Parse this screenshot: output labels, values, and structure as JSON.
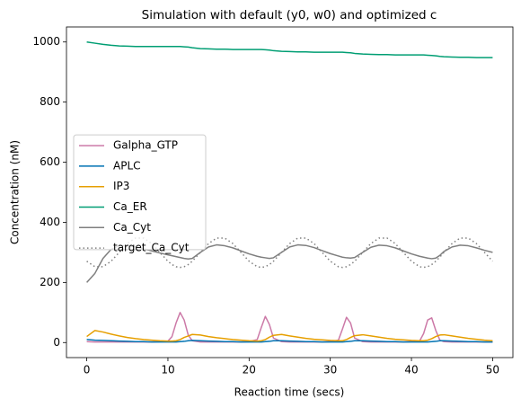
{
  "chart_data": {
    "type": "line",
    "title": "Simulation with default (y0, w0) and optimized c",
    "x_label": "Reaction time (secs)",
    "y_label": "Concentration (nM)",
    "xlim": [
      -2.5,
      52.5
    ],
    "ylim": [
      -50,
      1050
    ],
    "xticks": [
      0,
      10,
      20,
      30,
      40,
      50
    ],
    "yticks": [
      0,
      200,
      400,
      600,
      800,
      1000
    ],
    "legend_loc": "center left",
    "x": [
      0,
      1,
      2,
      3,
      4,
      5,
      6,
      7,
      8,
      9,
      10,
      10.5,
      11,
      11.5,
      12,
      12.5,
      13,
      14,
      15,
      16,
      17,
      18,
      19,
      20,
      21,
      21.5,
      22,
      22.5,
      23,
      24,
      25,
      26,
      27,
      28,
      29,
      30,
      31,
      31.5,
      32,
      32.5,
      33,
      34,
      35,
      36,
      37,
      38,
      39,
      40,
      41,
      41.5,
      42,
      42.5,
      43,
      43.5,
      44,
      45,
      46,
      47,
      48,
      49,
      50
    ],
    "series": [
      {
        "name": "Galpha_GTP",
        "color": "#cc79a7",
        "linestyle": "solid",
        "values": [
          3,
          2,
          2,
          2,
          2,
          2,
          2,
          2,
          2,
          3,
          5,
          20,
          65,
          100,
          75,
          25,
          6,
          2,
          2,
          2,
          2,
          2,
          2,
          3,
          10,
          50,
          87,
          60,
          15,
          3,
          2,
          2,
          2,
          2,
          2,
          3,
          8,
          45,
          84,
          65,
          15,
          3,
          2,
          2,
          2,
          2,
          2,
          3,
          5,
          30,
          75,
          82,
          40,
          8,
          3,
          2,
          2,
          2,
          2,
          2,
          2
        ]
      },
      {
        "name": "APLC",
        "color": "#0072b2",
        "linestyle": "solid",
        "values": [
          10,
          8,
          7,
          6,
          5,
          4,
          3,
          3,
          2,
          2,
          2,
          2,
          2,
          3,
          4,
          6,
          7,
          6,
          5,
          4,
          3,
          3,
          2,
          2,
          2,
          2,
          3,
          4,
          6,
          6,
          5,
          4,
          3,
          3,
          2,
          2,
          2,
          2,
          3,
          4,
          6,
          6,
          5,
          4,
          3,
          3,
          2,
          2,
          2,
          2,
          2,
          3,
          4,
          6,
          6,
          5,
          4,
          3,
          3,
          2,
          2
        ]
      },
      {
        "name": "IP3",
        "color": "#e69f00",
        "linestyle": "solid",
        "values": [
          20,
          40,
          35,
          28,
          22,
          17,
          13,
          10,
          8,
          6,
          5,
          5,
          6,
          10,
          17,
          22,
          27,
          25,
          20,
          16,
          13,
          10,
          8,
          6,
          5,
          6,
          10,
          18,
          24,
          27,
          22,
          18,
          14,
          11,
          9,
          7,
          6,
          6,
          10,
          17,
          23,
          26,
          22,
          18,
          14,
          11,
          9,
          7,
          6,
          6,
          8,
          13,
          20,
          25,
          26,
          22,
          18,
          14,
          11,
          8,
          6
        ]
      },
      {
        "name": "Ca_ER",
        "color": "#009e73",
        "linestyle": "solid",
        "values": [
          1000,
          996,
          992,
          989,
          987,
          986,
          985,
          985,
          985,
          985,
          985,
          985,
          985,
          985,
          984,
          983,
          981,
          978,
          977,
          976,
          976,
          975,
          975,
          975,
          975,
          975,
          974,
          973,
          971,
          969,
          968,
          967,
          967,
          966,
          966,
          966,
          966,
          966,
          965,
          964,
          962,
          960,
          959,
          958,
          958,
          957,
          957,
          957,
          957,
          957,
          956,
          955,
          954,
          952,
          951,
          950,
          949,
          949,
          948,
          948,
          948
        ]
      },
      {
        "name": "Ca_Cyt",
        "color": "#7f7f7f",
        "linestyle": "solid",
        "values": [
          200,
          230,
          280,
          310,
          322,
          322,
          318,
          312,
          305,
          298,
          292,
          289,
          286,
          283,
          280,
          278,
          280,
          300,
          318,
          325,
          322,
          315,
          305,
          295,
          287,
          284,
          282,
          280,
          282,
          300,
          318,
          325,
          323,
          316,
          306,
          296,
          288,
          284,
          282,
          281,
          283,
          300,
          317,
          324,
          322,
          315,
          305,
          295,
          287,
          284,
          281,
          279,
          281,
          290,
          303,
          318,
          324,
          322,
          315,
          307,
          300
        ]
      },
      {
        "name": "target_Ca_Cyt",
        "color": "#7f7f7f",
        "linestyle": "dotted",
        "values": [
          270.6,
          252.4,
          252.4,
          270.6,
          300,
          329.4,
          347.6,
          347.6,
          329.4,
          300,
          270.6,
          259.5,
          252.4,
          250,
          252.4,
          259.5,
          270.6,
          300,
          329.4,
          347.6,
          347.6,
          329.4,
          300,
          270.6,
          252.4,
          250,
          252.4,
          259.5,
          270.6,
          300,
          329.4,
          347.6,
          347.6,
          329.4,
          300,
          270.6,
          252.4,
          250,
          252.4,
          259.5,
          270.6,
          300,
          329.4,
          347.6,
          347.6,
          329.4,
          300,
          270.6,
          252.4,
          250,
          252.4,
          259.5,
          270.6,
          284.5,
          300,
          329.4,
          347.6,
          347.6,
          329.4,
          300,
          270.6
        ]
      }
    ]
  }
}
